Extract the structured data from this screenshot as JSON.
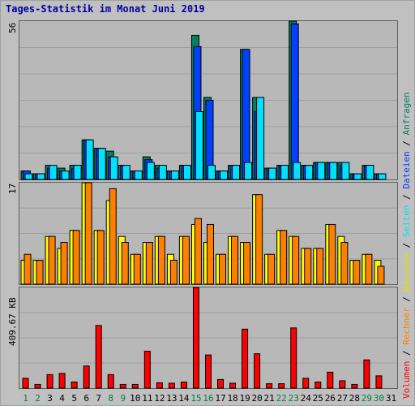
{
  "title": "Tages-Statistik im Monat Juni 2019",
  "legend": {
    "volumen": "Volumen",
    "sep1": " / ",
    "rechner": "Rechner",
    "sep2": " / ",
    "besuche": "Besuche",
    "sep3": " / ",
    "seiten": "Seiten",
    "sep4": " / ",
    "dateien": "Dateien",
    "sep5": " / ",
    "anfragen": "Anfragen"
  },
  "colors": {
    "anfragen": "#008060",
    "dateien": "#0040ff",
    "seiten": "#00e0ff",
    "besuche": "#ffff00",
    "rechner": "#ff8000",
    "volumen": "#ff0000",
    "weekend_day": "#008040",
    "weekday": "#000000",
    "title": "#0000a0"
  },
  "chart_data": [
    {
      "type": "bar",
      "name": "hits",
      "axis_label": "56",
      "ylim": [
        0,
        56
      ],
      "categories": [
        "1",
        "2",
        "3",
        "4",
        "5",
        "6",
        "7",
        "8",
        "9",
        "10",
        "11",
        "12",
        "13",
        "14",
        "15",
        "16",
        "17",
        "18",
        "19",
        "20",
        "21",
        "22",
        "23",
        "24",
        "25",
        "26",
        "27",
        "28",
        "29",
        "30",
        "31"
      ],
      "series": [
        {
          "name": "Anfragen",
          "values": [
            3,
            2,
            5,
            4,
            5,
            14,
            11,
            10,
            5,
            3,
            8,
            5,
            3,
            5,
            51,
            29,
            3,
            5,
            46,
            29,
            4,
            5,
            56,
            5,
            6,
            6,
            6,
            2,
            5,
            2,
            0
          ]
        },
        {
          "name": "Dateien",
          "values": [
            3,
            2,
            4,
            3,
            4,
            14,
            11,
            8,
            5,
            3,
            7,
            4,
            3,
            5,
            47,
            28,
            3,
            5,
            46,
            24,
            4,
            5,
            55,
            5,
            6,
            6,
            5,
            2,
            5,
            2,
            0
          ]
        },
        {
          "name": "Seiten",
          "values": [
            2,
            2,
            5,
            3,
            5,
            14,
            11,
            8,
            5,
            3,
            6,
            5,
            3,
            5,
            24,
            5,
            3,
            5,
            6,
            29,
            4,
            5,
            6,
            5,
            6,
            6,
            6,
            2,
            5,
            2,
            0
          ]
        }
      ]
    },
    {
      "type": "bar",
      "name": "visits",
      "axis_label": "17",
      "ylim": [
        0,
        17
      ],
      "categories": [
        "1",
        "2",
        "3",
        "4",
        "5",
        "6",
        "7",
        "8",
        "9",
        "10",
        "11",
        "12",
        "13",
        "14",
        "15",
        "16",
        "17",
        "18",
        "19",
        "20",
        "21",
        "22",
        "23",
        "24",
        "25",
        "26",
        "27",
        "28",
        "29",
        "30",
        "31"
      ],
      "series": [
        {
          "name": "Besuche",
          "values": [
            4,
            4,
            8,
            6,
            9,
            17,
            9,
            14,
            8,
            5,
            7,
            8,
            5,
            8,
            10,
            7,
            5,
            8,
            7,
            15,
            5,
            9,
            8,
            6,
            6,
            10,
            8,
            4,
            5,
            4,
            0
          ]
        },
        {
          "name": "Rechner",
          "values": [
            5,
            4,
            8,
            7,
            9,
            17,
            9,
            16,
            7,
            5,
            7,
            8,
            4,
            8,
            11,
            10,
            5,
            8,
            7,
            15,
            5,
            9,
            8,
            6,
            6,
            10,
            7,
            4,
            5,
            3,
            0
          ]
        }
      ]
    },
    {
      "type": "bar",
      "name": "volume",
      "axis_label": "409.67 KB",
      "ylim": [
        0,
        409.67
      ],
      "categories": [
        "1",
        "2",
        "3",
        "4",
        "5",
        "6",
        "7",
        "8",
        "9",
        "10",
        "11",
        "12",
        "13",
        "14",
        "15",
        "16",
        "17",
        "18",
        "19",
        "20",
        "21",
        "22",
        "23",
        "24",
        "25",
        "26",
        "27",
        "28",
        "29",
        "30",
        "31"
      ],
      "series": [
        {
          "name": "Volumen",
          "values": [
            40,
            15,
            55,
            60,
            25,
            90,
            255,
            55,
            15,
            15,
            150,
            22,
            20,
            25,
            409.67,
            135,
            35,
            20,
            240,
            140,
            18,
            18,
            245,
            40,
            25,
            65,
            30,
            15,
            115,
            50,
            0
          ]
        }
      ]
    }
  ],
  "weekend_days": [
    "1",
    "2",
    "8",
    "9",
    "15",
    "16",
    "22",
    "23",
    "29",
    "30"
  ]
}
